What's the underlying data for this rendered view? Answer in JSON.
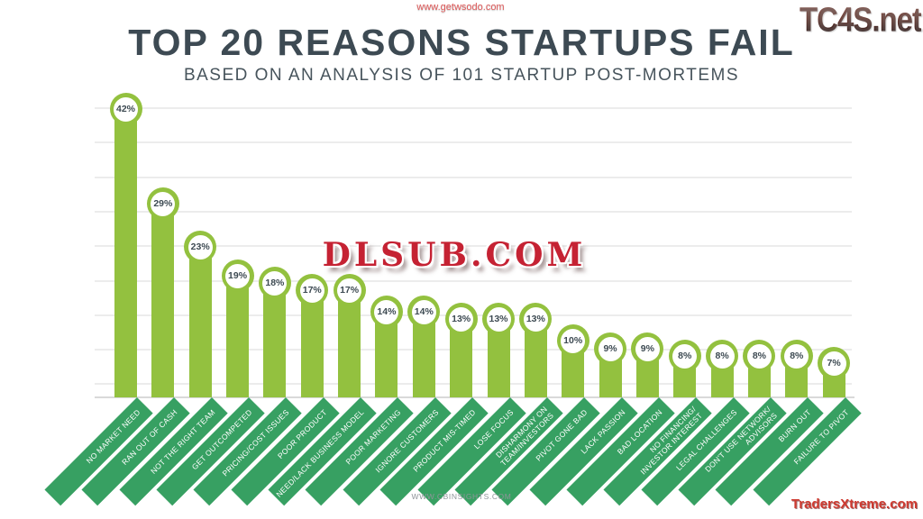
{
  "header": {
    "title": "TOP 20 REASONS STARTUPS FAIL",
    "subtitle": "BASED ON AN ANALYSIS OF 101 STARTUP POST-MORTEMS"
  },
  "footer": {
    "source": "WWW.CBINSIGHTS.COM"
  },
  "watermarks": {
    "top_center": "www.getwsodo.com",
    "top_right": "TC4S.net",
    "center": "DLSUB.COM",
    "bottom_right": "TradersXtreme.com"
  },
  "chart_data": {
    "type": "bar",
    "title": "TOP 20 REASONS STARTUPS FAIL",
    "subtitle": "BASED ON AN ANALYSIS OF 101 STARTUP POST-MORTEMS",
    "unit": "%",
    "ylim": [
      0,
      45
    ],
    "grid": true,
    "legend": false,
    "source": "WWW.CBINSIGHTS.COM",
    "categories": [
      "NO MARKET NEED",
      "RAN OUT OF CASH",
      "NOT THE RIGHT TEAM",
      "GET OUTCOMPETED",
      "PRICING/COST ISSUES",
      "POOR PRODUCT",
      "NEED/LACK BUSINESS MODEL",
      "POOR MARKETING",
      "IGNORE CUSTOMERS",
      "PRODUCT MIS-TIMED",
      "LOSE FOCUS",
      "DISHARMONY ON TEAM/INVESTORS",
      "PIVOT GONE BAD",
      "LACK PASSION",
      "BAD LOCATION",
      "NO FINANCING/INVESTOR INTEREST",
      "LEGAL CHALLENGES",
      "DON'T USE NETWORK/ADVISORS",
      "BURN OUT",
      "FAILURE TO PIVOT"
    ],
    "wrapped_labels": [
      "NO MARKET NEED",
      "RAN OUT OF CASH",
      "NOT THE RIGHT TEAM",
      "GET OUTCOMPETED",
      "PRICING/COST ISSUES",
      "POOR PRODUCT",
      "NEED/LACK BUSINESS MODEL",
      "POOR MARKETING",
      "IGNORE CUSTOMERS",
      "PRODUCT MIS-TIMED",
      "LOSE FOCUS",
      "DISHARMONY ON\nTEAM/INVESTORS",
      "PIVOT GONE BAD",
      "LACK PASSION",
      "BAD LOCATION",
      "NO FINANCING/\nINVESTOR INTEREST",
      "LEGAL CHALLENGES",
      "DON'T USE NETWORK/\nADVISORS",
      "BURN OUT",
      "FAILURE TO PIVOT"
    ],
    "values": [
      42,
      29,
      23,
      19,
      18,
      17,
      17,
      14,
      14,
      13,
      13,
      13,
      10,
      9,
      9,
      8,
      8,
      8,
      8,
      7
    ],
    "value_labels": [
      "42%",
      "29%",
      "23%",
      "19%",
      "18%",
      "17%",
      "17%",
      "14%",
      "14%",
      "13%",
      "13%",
      "13%",
      "10%",
      "9%",
      "9%",
      "8%",
      "8%",
      "8%",
      "8%",
      "7%"
    ],
    "colors": {
      "bar": "#93c13f",
      "ribbon": "#37a062",
      "value_text": "#3d4a52",
      "badge_fill": "#ffffff",
      "grid_line": "#ececec",
      "axis_line": "#d9d9d9"
    }
  }
}
